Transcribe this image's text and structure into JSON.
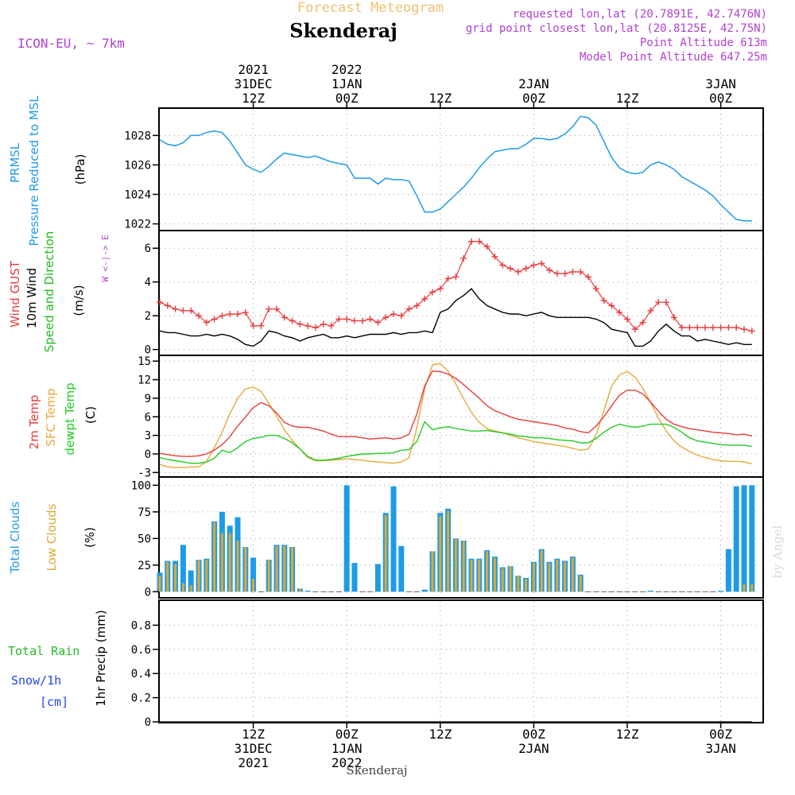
{
  "header": {
    "subtitle": "Forecast Meteogram",
    "location": "Skenderaj",
    "model": "ICON-EU, ~ 7km",
    "info": [
      "requested lon,lat (20.7891E, 42.7476N)",
      "grid point closest lon,lat (20.8125E, 42.75N)",
      "Point Altitude 613m",
      "Model Point Altitude 647.25m"
    ]
  },
  "colors": {
    "prmsl": "#1e9be8",
    "gust": "#e83c3c",
    "wind": "#000000",
    "wind_dir": "#22bb22",
    "temp2m": "#e83c3c",
    "sfc": "#e8a83c",
    "dew": "#22cc22",
    "total_clouds": "#1e9be8",
    "low_clouds": "#e0a830",
    "rain": "#22bb22",
    "snow": "#2244ee",
    "info": "#b040d0",
    "subtitle": "#f0c070"
  },
  "time_axis": {
    "top_labels": [
      {
        "hour": 12,
        "lines": [
          "2021",
          "31DEC",
          "12Z"
        ]
      },
      {
        "hour": 24,
        "lines": [
          "2022",
          "1JAN",
          "00Z"
        ]
      },
      {
        "hour": 36,
        "lines": [
          "",
          "",
          "12Z"
        ]
      },
      {
        "hour": 48,
        "lines": [
          "",
          "2JAN",
          "00Z"
        ]
      },
      {
        "hour": 60,
        "lines": [
          "",
          "",
          "12Z"
        ]
      },
      {
        "hour": 72,
        "lines": [
          "",
          "3JAN",
          "00Z"
        ]
      }
    ],
    "bottom_labels": [
      {
        "hour": 12,
        "lines": [
          "12Z",
          "31DEC",
          "2021"
        ]
      },
      {
        "hour": 24,
        "lines": [
          "00Z",
          "1JAN",
          "2022"
        ]
      },
      {
        "hour": 36,
        "lines": [
          "12Z",
          "",
          ""
        ]
      },
      {
        "hour": 48,
        "lines": [
          "00Z",
          "2JAN",
          ""
        ]
      },
      {
        "hour": 60,
        "lines": [
          "12Z",
          "",
          ""
        ]
      },
      {
        "hour": 72,
        "lines": [
          "00Z",
          "3JAN",
          ""
        ]
      }
    ],
    "footer_label": "Skenderaj"
  },
  "panels": {
    "pressure": {
      "label_blue": [
        "PRMSL",
        "Pressure Reduced to MSL"
      ],
      "unit": "(hPa)",
      "ylim": [
        1021.6,
        1029.8
      ],
      "ticks": [
        1022,
        1024,
        1026,
        1028
      ]
    },
    "wind": {
      "label_red": "Wind GUST",
      "label_black": "10m Wind",
      "label_green": "Speed and Direction",
      "unit": "(m/s)",
      "compass": [
        "N",
        "W <-|-> E",
        "S"
      ],
      "ylim": [
        -0.3,
        7.0
      ],
      "ticks": [
        0,
        2,
        4,
        6
      ]
    },
    "temp": {
      "label_red": "2m Temp",
      "label_orange": "SFC Temp",
      "label_green": "dewpt Temp",
      "unit": "(C)",
      "ylim": [
        -3.6,
        15.8
      ],
      "ticks": [
        -3,
        0,
        3,
        6,
        9,
        12,
        15
      ]
    },
    "clouds": {
      "label_blue": "Total Clouds",
      "label_orange": "Low Clouds",
      "unit": "(%)",
      "ylim": [
        -5,
        107
      ],
      "ticks": [
        0,
        25,
        50,
        75,
        100
      ]
    },
    "precip": {
      "label_green": "Total Rain",
      "label_blue": [
        "Snow/1h",
        "[cm]"
      ],
      "ylabel": "1hr Precip (mm)",
      "ylim": [
        0,
        1.0
      ],
      "ticks": [
        "0",
        "0.2",
        "0.4",
        "0.6",
        "0.8"
      ],
      "tick_values": [
        0,
        0.2,
        0.4,
        0.6,
        0.8
      ]
    }
  },
  "watermark": "by Angel",
  "chart_data": [
    {
      "type": "line",
      "title": "PRMSL",
      "x": [
        0,
        1,
        2,
        3,
        4,
        5,
        6,
        7,
        8,
        9,
        10,
        11,
        12,
        13,
        14,
        15,
        16,
        17,
        18,
        19,
        20,
        21,
        22,
        23,
        24,
        25,
        26,
        27,
        28,
        29,
        30,
        31,
        32,
        33,
        34,
        35,
        36,
        37,
        38,
        39,
        40,
        41,
        42,
        43,
        44,
        45,
        46,
        47,
        48,
        49,
        50,
        51,
        52,
        53,
        54,
        55,
        56,
        57,
        58,
        59,
        60,
        61,
        62,
        63,
        64,
        65,
        66,
        67,
        68,
        69,
        70,
        71,
        72,
        73,
        74,
        75,
        76
      ],
      "series": [
        {
          "name": "PRMSL",
          "values": [
            1027.7,
            1027.4,
            1027.3,
            1027.5,
            1028.0,
            1028.0,
            1028.2,
            1028.3,
            1028.2,
            1027.6,
            1026.8,
            1026.0,
            1025.7,
            1025.5,
            1025.9,
            1026.4,
            1026.8,
            1026.7,
            1026.6,
            1026.5,
            1026.6,
            1026.4,
            1026.2,
            1026.1,
            1026.0,
            1025.1,
            1025.1,
            1025.1,
            1024.7,
            1025.1,
            1025.0,
            1025.0,
            1024.9,
            1023.9,
            1022.8,
            1022.8,
            1023.0,
            1023.5,
            1024.0,
            1024.5,
            1025.1,
            1025.8,
            1026.4,
            1026.9,
            1027.0,
            1027.1,
            1027.1,
            1027.4,
            1027.8,
            1027.8,
            1027.7,
            1027.8,
            1028.1,
            1028.6,
            1029.3,
            1029.2,
            1028.7,
            1027.6,
            1026.5,
            1025.8,
            1025.5,
            1025.4,
            1025.5,
            1026.0,
            1026.2,
            1026.0,
            1025.7,
            1025.2,
            1024.9,
            1024.6,
            1024.3,
            1023.9,
            1023.3,
            1022.8,
            1022.3,
            1022.2,
            1022.2
          ]
        }
      ],
      "ylabel": "(hPa)",
      "ylim": [
        1021.6,
        1029.8
      ]
    },
    {
      "type": "line",
      "title": "Wind GUST / 10m Wind",
      "x": [
        0,
        1,
        2,
        3,
        4,
        5,
        6,
        7,
        8,
        9,
        10,
        11,
        12,
        13,
        14,
        15,
        16,
        17,
        18,
        19,
        20,
        21,
        22,
        23,
        24,
        25,
        26,
        27,
        28,
        29,
        30,
        31,
        32,
        33,
        34,
        35,
        36,
        37,
        38,
        39,
        40,
        41,
        42,
        43,
        44,
        45,
        46,
        47,
        48,
        49,
        50,
        51,
        52,
        53,
        54,
        55,
        56,
        57,
        58,
        59,
        60,
        61,
        62,
        63,
        64,
        65,
        66,
        67,
        68,
        69,
        70,
        71,
        72,
        73,
        74,
        75,
        76
      ],
      "series": [
        {
          "name": "Wind GUST",
          "values": [
            2.8,
            2.6,
            2.4,
            2.3,
            2.3,
            2.0,
            1.6,
            1.8,
            2.0,
            2.1,
            2.1,
            2.2,
            1.4,
            1.4,
            2.4,
            2.4,
            1.9,
            1.7,
            1.5,
            1.4,
            1.3,
            1.5,
            1.4,
            1.8,
            1.8,
            1.7,
            1.7,
            1.8,
            1.6,
            1.9,
            2.1,
            2.0,
            2.4,
            2.6,
            3.0,
            3.4,
            3.6,
            4.2,
            4.3,
            5.4,
            6.4,
            6.4,
            6.1,
            5.5,
            5.0,
            4.8,
            4.6,
            4.8,
            5.0,
            5.1,
            4.7,
            4.5,
            4.5,
            4.6,
            4.6,
            4.3,
            3.6,
            2.9,
            2.6,
            2.2,
            1.8,
            1.2,
            1.6,
            2.3,
            2.8,
            2.8,
            1.9,
            1.3,
            1.3,
            1.3,
            1.3,
            1.3,
            1.3,
            1.3,
            1.3,
            1.2,
            1.1
          ]
        },
        {
          "name": "10m Wind",
          "values": [
            1.1,
            1.0,
            1.0,
            0.9,
            0.8,
            0.8,
            0.9,
            0.8,
            0.9,
            0.8,
            0.6,
            0.3,
            0.2,
            0.5,
            1.1,
            1.0,
            0.8,
            0.7,
            0.5,
            0.7,
            0.8,
            0.9,
            0.7,
            0.7,
            0.8,
            0.7,
            0.8,
            0.9,
            0.9,
            0.9,
            1.0,
            0.9,
            1.0,
            1.0,
            1.1,
            1.0,
            2.2,
            2.4,
            2.9,
            3.2,
            3.6,
            3.0,
            2.6,
            2.4,
            2.2,
            2.1,
            2.1,
            2.0,
            2.1,
            2.2,
            2.0,
            1.9,
            1.9,
            1.9,
            1.9,
            1.9,
            1.8,
            1.6,
            1.2,
            1.1,
            1.0,
            0.2,
            0.2,
            0.5,
            1.1,
            1.5,
            1.1,
            0.8,
            0.8,
            0.5,
            0.6,
            0.5,
            0.4,
            0.3,
            0.4,
            0.3,
            0.3
          ]
        }
      ],
      "ylabel": "(m/s)",
      "ylim": [
        -0.3,
        7.0
      ]
    },
    {
      "type": "line",
      "title": "Temperatures",
      "x": [
        0,
        1,
        2,
        3,
        4,
        5,
        6,
        7,
        8,
        9,
        10,
        11,
        12,
        13,
        14,
        15,
        16,
        17,
        18,
        19,
        20,
        21,
        22,
        23,
        24,
        25,
        26,
        27,
        28,
        29,
        30,
        31,
        32,
        33,
        34,
        35,
        36,
        37,
        38,
        39,
        40,
        41,
        42,
        43,
        44,
        45,
        46,
        47,
        48,
        49,
        50,
        51,
        52,
        53,
        54,
        55,
        56,
        57,
        58,
        59,
        60,
        61,
        62,
        63,
        64,
        65,
        66,
        67,
        68,
        69,
        70,
        71,
        72,
        73,
        74,
        75,
        76
      ],
      "series": [
        {
          "name": "2m Temp",
          "values": [
            0.1,
            -0.1,
            -0.3,
            -0.4,
            -0.4,
            -0.3,
            0.0,
            0.6,
            1.5,
            2.8,
            4.5,
            6.0,
            7.5,
            8.3,
            7.8,
            6.6,
            5.1,
            4.5,
            4.3,
            4.3,
            4.0,
            3.7,
            3.2,
            2.8,
            2.8,
            2.8,
            2.6,
            2.4,
            2.5,
            2.6,
            2.4,
            2.6,
            3.2,
            6.5,
            11.0,
            13.4,
            13.3,
            12.9,
            12.2,
            11.2,
            10.1,
            9.0,
            7.8,
            7.0,
            6.5,
            6.0,
            5.6,
            5.4,
            5.2,
            5.0,
            4.8,
            4.6,
            4.2,
            4.0,
            3.6,
            3.4,
            4.5,
            6.0,
            7.8,
            9.5,
            10.3,
            10.3,
            9.7,
            8.4,
            6.9,
            5.6,
            4.8,
            4.4,
            4.1,
            3.9,
            3.7,
            3.5,
            3.4,
            3.3,
            3.1,
            3.2,
            2.9
          ]
        },
        {
          "name": "SFC Temp",
          "values": [
            -1.7,
            -2.1,
            -2.2,
            -2.2,
            -2.1,
            -2.1,
            -1.2,
            1.0,
            3.5,
            6.5,
            9.0,
            10.5,
            10.8,
            10.1,
            8.2,
            6.1,
            3.9,
            2.2,
            0.8,
            -0.6,
            -1.1,
            -1.1,
            -1.0,
            -0.9,
            -0.8,
            -0.9,
            -1.0,
            -1.2,
            -1.3,
            -1.4,
            -1.5,
            -1.3,
            -0.6,
            4.2,
            10.5,
            14.4,
            14.6,
            13.4,
            11.3,
            8.9,
            6.7,
            5.1,
            4.1,
            3.7,
            3.4,
            3.0,
            2.6,
            2.3,
            2.0,
            1.8,
            1.6,
            1.4,
            1.2,
            0.9,
            0.6,
            0.8,
            3.0,
            7.0,
            11.0,
            12.8,
            13.3,
            12.4,
            10.6,
            8.3,
            5.8,
            3.7,
            2.1,
            1.1,
            0.4,
            -0.2,
            -0.6,
            -0.9,
            -1.1,
            -1.2,
            -1.2,
            -1.3,
            -1.6
          ]
        },
        {
          "name": "dewpt Temp",
          "values": [
            -0.6,
            -0.9,
            -1.1,
            -1.3,
            -1.5,
            -1.5,
            -1.3,
            -0.7,
            0.6,
            0.2,
            1.0,
            2.0,
            2.5,
            2.7,
            3.0,
            3.0,
            2.5,
            1.8,
            0.8,
            -0.4,
            -1.0,
            -1.0,
            -0.9,
            -0.7,
            -0.4,
            -0.2,
            0.0,
            0.0,
            0.1,
            0.1,
            0.2,
            0.6,
            0.7,
            2.0,
            5.2,
            3.9,
            4.2,
            4.4,
            4.1,
            3.9,
            3.7,
            3.7,
            3.8,
            3.6,
            3.4,
            3.2,
            2.9,
            2.8,
            2.6,
            2.6,
            2.5,
            2.3,
            2.2,
            2.1,
            1.8,
            1.8,
            2.5,
            3.5,
            4.3,
            4.8,
            4.5,
            4.3,
            4.5,
            4.8,
            4.8,
            4.8,
            4.3,
            3.5,
            2.6,
            2.1,
            1.9,
            1.7,
            1.5,
            1.4,
            1.4,
            1.4,
            1.2
          ]
        }
      ],
      "ylabel": "(C)",
      "ylim": [
        -3.6,
        15.8
      ]
    },
    {
      "type": "bar",
      "title": "Clouds",
      "x": [
        0,
        1,
        2,
        3,
        4,
        5,
        6,
        7,
        8,
        9,
        10,
        11,
        12,
        13,
        14,
        15,
        16,
        17,
        18,
        19,
        20,
        21,
        22,
        23,
        24,
        25,
        26,
        27,
        28,
        29,
        30,
        31,
        32,
        33,
        34,
        35,
        36,
        37,
        38,
        39,
        40,
        41,
        42,
        43,
        44,
        45,
        46,
        47,
        48,
        49,
        50,
        51,
        52,
        53,
        54,
        55,
        56,
        57,
        58,
        59,
        60,
        61,
        62,
        63,
        64,
        65,
        66,
        67,
        68,
        69,
        70,
        71,
        72,
        73,
        74,
        75,
        76
      ],
      "series": [
        {
          "name": "Total Clouds",
          "values": [
            18,
            29,
            29,
            44,
            20,
            30,
            31,
            66,
            75,
            62,
            70,
            42,
            32,
            0,
            30,
            44,
            44,
            42,
            3,
            1,
            0,
            0,
            0,
            0,
            100,
            27,
            0,
            0,
            26,
            74,
            99,
            43,
            0,
            0,
            2,
            38,
            74,
            78,
            50,
            48,
            31,
            31,
            39,
            33,
            23,
            24,
            15,
            13,
            28,
            40,
            28,
            31,
            29,
            33,
            16,
            0,
            0,
            0,
            0,
            0,
            0,
            0,
            0,
            1,
            0,
            0,
            0,
            0,
            0,
            0,
            0,
            0,
            1,
            40,
            99,
            100,
            100
          ]
        },
        {
          "name": "Low Clouds",
          "values": [
            15,
            28,
            26,
            8,
            6,
            30,
            30,
            65,
            55,
            55,
            48,
            42,
            12,
            0,
            30,
            43,
            43,
            42,
            3,
            0,
            0,
            0,
            0,
            0,
            0,
            0,
            0,
            0,
            0,
            72,
            0,
            0,
            0,
            0,
            0,
            38,
            71,
            76,
            50,
            48,
            30,
            30,
            38,
            32,
            22,
            24,
            15,
            12,
            27,
            39,
            27,
            30,
            28,
            32,
            15,
            0,
            0,
            0,
            0,
            0,
            0,
            0,
            0,
            0,
            0,
            0,
            0,
            0,
            0,
            0,
            0,
            0,
            0,
            0,
            0,
            7,
            7
          ]
        }
      ],
      "ylabel": "(%)",
      "ylim": [
        -5,
        107
      ]
    },
    {
      "type": "line",
      "title": "1hr Precip",
      "x": [
        0,
        76
      ],
      "series": [
        {
          "name": "Total Rain",
          "values": [
            0,
            0
          ]
        },
        {
          "name": "Snow/1h",
          "values": [
            0,
            0
          ]
        }
      ],
      "ylabel": "1hr Precip (mm)",
      "ylim": [
        0,
        1.0
      ]
    }
  ]
}
